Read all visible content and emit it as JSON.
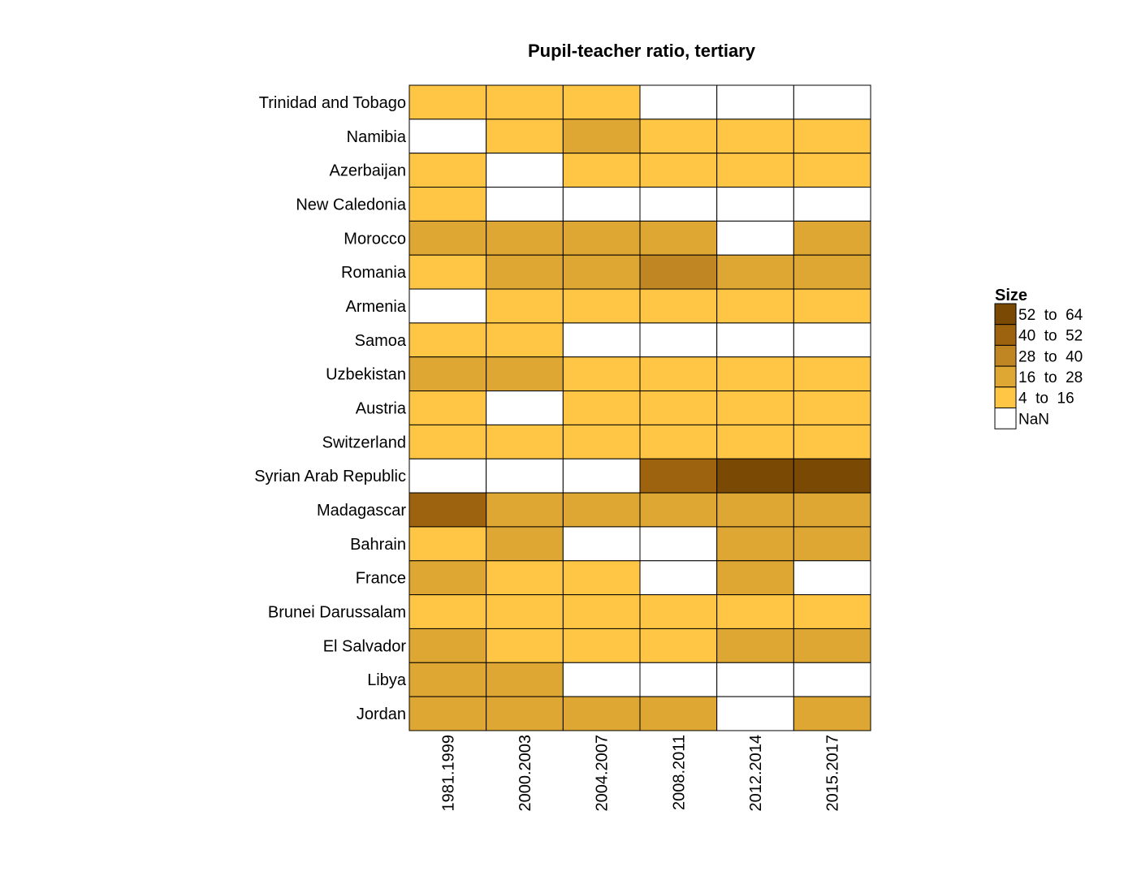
{
  "chart_data": {
    "type": "heatmap",
    "title": "Pupil-teacher ratio, tertiary",
    "columns": [
      "1981.1999",
      "2000.2003",
      "2004.2007",
      "2008.2011",
      "2012.2014",
      "2015.2017"
    ],
    "rows": [
      {
        "name": "Trinidad and Tobago",
        "bins": [
          "4 to 16",
          "4 to 16",
          "4 to 16",
          "NaN",
          "NaN",
          "NaN"
        ]
      },
      {
        "name": "Namibia",
        "bins": [
          "NaN",
          "4 to 16",
          "16 to 28",
          "4 to 16",
          "4 to 16",
          "4 to 16"
        ]
      },
      {
        "name": "Azerbaijan",
        "bins": [
          "4 to 16",
          "NaN",
          "4 to 16",
          "4 to 16",
          "4 to 16",
          "4 to 16"
        ]
      },
      {
        "name": "New Caledonia",
        "bins": [
          "4 to 16",
          "NaN",
          "NaN",
          "NaN",
          "NaN",
          "NaN"
        ]
      },
      {
        "name": "Morocco",
        "bins": [
          "16 to 28",
          "16 to 28",
          "16 to 28",
          "16 to 28",
          "NaN",
          "16 to 28"
        ]
      },
      {
        "name": "Romania",
        "bins": [
          "4 to 16",
          "16 to 28",
          "16 to 28",
          "28 to 40",
          "16 to 28",
          "16 to 28"
        ]
      },
      {
        "name": "Armenia",
        "bins": [
          "NaN",
          "4 to 16",
          "4 to 16",
          "4 to 16",
          "4 to 16",
          "4 to 16"
        ]
      },
      {
        "name": "Samoa",
        "bins": [
          "4 to 16",
          "4 to 16",
          "NaN",
          "NaN",
          "NaN",
          "NaN"
        ]
      },
      {
        "name": "Uzbekistan",
        "bins": [
          "16 to 28",
          "16 to 28",
          "4 to 16",
          "4 to 16",
          "4 to 16",
          "4 to 16"
        ]
      },
      {
        "name": "Austria",
        "bins": [
          "4 to 16",
          "NaN",
          "4 to 16",
          "4 to 16",
          "4 to 16",
          "4 to 16"
        ]
      },
      {
        "name": "Switzerland",
        "bins": [
          "4 to 16",
          "4 to 16",
          "4 to 16",
          "4 to 16",
          "4 to 16",
          "4 to 16"
        ]
      },
      {
        "name": "Syrian Arab Republic",
        "bins": [
          "NaN",
          "NaN",
          "NaN",
          "40 to 52",
          "52 to 64",
          "52 to 64"
        ]
      },
      {
        "name": "Madagascar",
        "bins": [
          "40 to 52",
          "16 to 28",
          "16 to 28",
          "16 to 28",
          "16 to 28",
          "16 to 28"
        ]
      },
      {
        "name": "Bahrain",
        "bins": [
          "4 to 16",
          "16 to 28",
          "NaN",
          "NaN",
          "16 to 28",
          "16 to 28"
        ]
      },
      {
        "name": "France",
        "bins": [
          "16 to 28",
          "4 to 16",
          "4 to 16",
          "NaN",
          "16 to 28",
          "NaN"
        ]
      },
      {
        "name": "Brunei Darussalam",
        "bins": [
          "4 to 16",
          "4 to 16",
          "4 to 16",
          "4 to 16",
          "4 to 16",
          "4 to 16"
        ]
      },
      {
        "name": "El Salvador",
        "bins": [
          "16 to 28",
          "4 to 16",
          "4 to 16",
          "4 to 16",
          "16 to 28",
          "16 to 28"
        ]
      },
      {
        "name": "Libya",
        "bins": [
          "16 to 28",
          "16 to 28",
          "NaN",
          "NaN",
          "NaN",
          "NaN"
        ]
      },
      {
        "name": "Jordan",
        "bins": [
          "16 to 28",
          "16 to 28",
          "16 to 28",
          "16 to 28",
          "NaN",
          "16 to 28"
        ]
      }
    ],
    "legend": {
      "title": "Size",
      "placement": "right",
      "items": [
        {
          "label": "52  to  64",
          "key": "52 to 64",
          "color": "#7A4A04"
        },
        {
          "label": "40  to  52",
          "key": "40 to 52",
          "color": "#9E630F"
        },
        {
          "label": "28  to  40",
          "key": "28 to 40",
          "color": "#BF8623"
        },
        {
          "label": "16  to  28",
          "key": "16 to 28",
          "color": "#DEA632"
        },
        {
          "label": "4  to  16",
          "key": "4 to 16",
          "color": "#FFC544"
        },
        {
          "label": "NaN",
          "key": "NaN",
          "color": "#FFFFFF"
        }
      ]
    }
  }
}
